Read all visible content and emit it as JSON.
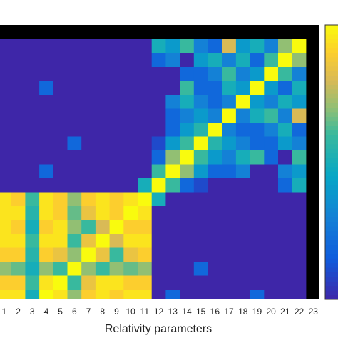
{
  "chart_data": {
    "type": "heatmap",
    "xlabel": "Relativity parameters",
    "categories": [
      "1",
      "2",
      "3",
      "4",
      "5",
      "6",
      "7",
      "8",
      "9",
      "10",
      "11",
      "12",
      "13",
      "14",
      "15",
      "16",
      "17",
      "18",
      "19",
      "20",
      "21",
      "22",
      "23"
    ],
    "clim": [
      0,
      1
    ],
    "colorbar": true,
    "values": [
      [
        1,
        0.95,
        0.6,
        0.95,
        0.9,
        0.7,
        0.9,
        0.95,
        0.95,
        0.95,
        0.95,
        0,
        0,
        0,
        0,
        0,
        0,
        0,
        0,
        0,
        0,
        0,
        null
      ],
      [
        0.95,
        1,
        0.55,
        0.95,
        0.9,
        0.65,
        0.9,
        0.95,
        0.9,
        0.95,
        0.9,
        0,
        0,
        0,
        0,
        0,
        0,
        0,
        0,
        0,
        0,
        0,
        null
      ],
      [
        0.6,
        0.55,
        1,
        0.5,
        0.6,
        0.5,
        0.55,
        0.6,
        0.5,
        0.55,
        0.6,
        0,
        0,
        0,
        0,
        0,
        0,
        0,
        0,
        0,
        0,
        0,
        null
      ],
      [
        0.95,
        0.95,
        0.5,
        1,
        0.95,
        0.7,
        0.9,
        0.95,
        0.9,
        0.95,
        0.95,
        0,
        0.2,
        0,
        0,
        0,
        0,
        0,
        0.2,
        0,
        0,
        0,
        null
      ],
      [
        0.9,
        0.9,
        0.6,
        0.95,
        1,
        0.6,
        0.85,
        0.95,
        0.95,
        0.9,
        0.9,
        0,
        0,
        0,
        0,
        0,
        0,
        0,
        0,
        0,
        0,
        0,
        null
      ],
      [
        0.7,
        0.65,
        0.5,
        0.7,
        0.6,
        1,
        0.7,
        0.6,
        0.7,
        0.65,
        0.7,
        0,
        0,
        0,
        0.2,
        0,
        0,
        0,
        0,
        0,
        0,
        0,
        null
      ],
      [
        0.9,
        0.9,
        0.55,
        0.9,
        0.85,
        0.7,
        1,
        0.85,
        0.6,
        0.85,
        0.9,
        0,
        0,
        0,
        0,
        0,
        0,
        0,
        0,
        0,
        0,
        0,
        null
      ],
      [
        0.95,
        0.95,
        0.6,
        0.95,
        0.95,
        0.6,
        0.85,
        1,
        0.8,
        0.95,
        0.95,
        0,
        0,
        0,
        0,
        0,
        0,
        0,
        0,
        0,
        0,
        0,
        null
      ],
      [
        0.95,
        0.9,
        0.5,
        0.9,
        0.95,
        0.7,
        0.6,
        0.8,
        1,
        0.9,
        0.9,
        0,
        0,
        0,
        0,
        0,
        0,
        0,
        0,
        0,
        0,
        0,
        null
      ],
      [
        0.95,
        0.95,
        0.55,
        0.95,
        0.9,
        0.65,
        0.85,
        0.95,
        0.9,
        1,
        0.95,
        0,
        0,
        0,
        0,
        0,
        0,
        0,
        0,
        0,
        0,
        0,
        null
      ],
      [
        0.95,
        0.9,
        0.6,
        0.95,
        0.9,
        0.7,
        0.9,
        0.95,
        0.9,
        0.95,
        1,
        0.5,
        0,
        0,
        0,
        0,
        0,
        0,
        0,
        0,
        0,
        0,
        null
      ],
      [
        0,
        0,
        0,
        0,
        0,
        0,
        0,
        0,
        0,
        0,
        0.5,
        1,
        0.6,
        0.2,
        0.1,
        0,
        0,
        0,
        0,
        0,
        0.2,
        0.5,
        null
      ],
      [
        0,
        0,
        0,
        0.2,
        0,
        0,
        0,
        0,
        0,
        0,
        0,
        0.6,
        1,
        0.7,
        0.4,
        0.2,
        0.2,
        0.3,
        0,
        0,
        0.3,
        0.4,
        null
      ],
      [
        0,
        0,
        0,
        0,
        0,
        0,
        0,
        0,
        0,
        0,
        0,
        0.2,
        0.7,
        1,
        0.6,
        0.4,
        0.3,
        0.5,
        0.6,
        0.2,
        0,
        0.6,
        null
      ],
      [
        0,
        0,
        0,
        0,
        0,
        0.2,
        0,
        0,
        0,
        0,
        0,
        0.1,
        0.4,
        0.6,
        1,
        0.55,
        0.4,
        0.3,
        0.2,
        0.2,
        0.4,
        0.3,
        null
      ],
      [
        0,
        0,
        0,
        0,
        0,
        0,
        0,
        0,
        0,
        0,
        0,
        0,
        0.2,
        0.4,
        0.55,
        1,
        0.3,
        0.2,
        0.2,
        0.3,
        0.5,
        0.2,
        null
      ],
      [
        0,
        0,
        0,
        0,
        0,
        0,
        0,
        0,
        0,
        0,
        0,
        0,
        0.2,
        0.3,
        0.4,
        0.3,
        1,
        0.3,
        0.5,
        0.6,
        0.3,
        0.8,
        null
      ],
      [
        0,
        0,
        0,
        0,
        0,
        0,
        0,
        0,
        0,
        0,
        0,
        0,
        0.3,
        0.5,
        0.3,
        0.2,
        0.3,
        1,
        0.4,
        0.3,
        0.5,
        0.4,
        null
      ],
      [
        0,
        0,
        0,
        0.2,
        0,
        0,
        0,
        0,
        0,
        0,
        0,
        0,
        0,
        0.6,
        0.2,
        0.2,
        0.5,
        0.4,
        1,
        0.4,
        0.2,
        0.5,
        null
      ],
      [
        0,
        0,
        0,
        0,
        0,
        0,
        0,
        0,
        0,
        0,
        0,
        0,
        0,
        0.2,
        0.2,
        0.3,
        0.6,
        0.3,
        0.4,
        1,
        0.6,
        0.3,
        null
      ],
      [
        0,
        0,
        0,
        0,
        0,
        0,
        0,
        0,
        0,
        0,
        0,
        0.2,
        0.3,
        0,
        0.4,
        0.5,
        0.3,
        0.5,
        0.2,
        0.6,
        1,
        0.7,
        null
      ],
      [
        0,
        0,
        0,
        0,
        0,
        0,
        0,
        0,
        0,
        0,
        0,
        0.5,
        0.4,
        0.6,
        0.3,
        0.2,
        0.8,
        0.4,
        0.5,
        0.3,
        0.7,
        1,
        null
      ],
      [
        null,
        null,
        null,
        null,
        null,
        null,
        null,
        null,
        null,
        null,
        null,
        null,
        null,
        null,
        null,
        null,
        null,
        null,
        null,
        null,
        null,
        null,
        null
      ]
    ]
  }
}
